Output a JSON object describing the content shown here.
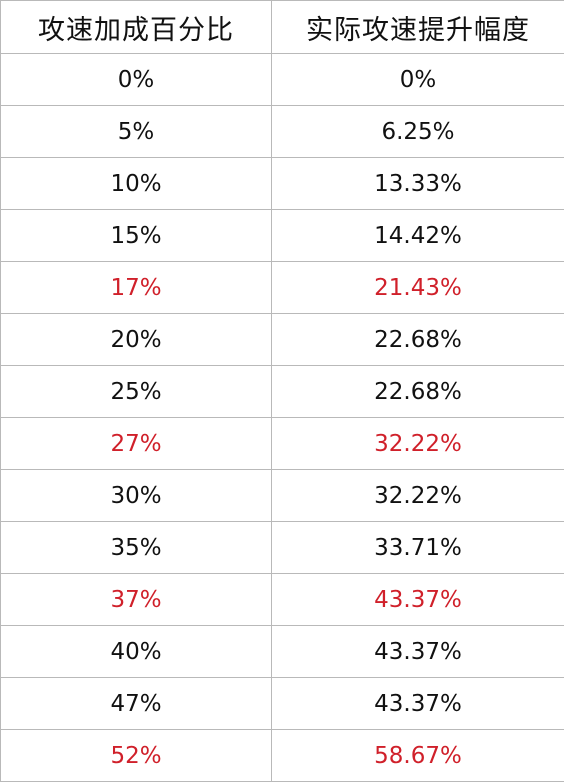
{
  "table": {
    "headers": [
      "攻速加成百分比",
      "实际攻速提升幅度"
    ],
    "highlight_color": "#d0202a",
    "rows": [
      {
        "bonus": "0%",
        "actual": "0%",
        "highlight": false
      },
      {
        "bonus": "5%",
        "actual": "6.25%",
        "highlight": false
      },
      {
        "bonus": "10%",
        "actual": "13.33%",
        "highlight": false
      },
      {
        "bonus": "15%",
        "actual": "14.42%",
        "highlight": false
      },
      {
        "bonus": "17%",
        "actual": "21.43%",
        "highlight": true
      },
      {
        "bonus": "20%",
        "actual": "22.68%",
        "highlight": false
      },
      {
        "bonus": "25%",
        "actual": "22.68%",
        "highlight": false
      },
      {
        "bonus": "27%",
        "actual": "32.22%",
        "highlight": true
      },
      {
        "bonus": "30%",
        "actual": "32.22%",
        "highlight": false
      },
      {
        "bonus": "35%",
        "actual": "33.71%",
        "highlight": false
      },
      {
        "bonus": "37%",
        "actual": "43.37%",
        "highlight": true
      },
      {
        "bonus": "40%",
        "actual": "43.37%",
        "highlight": false
      },
      {
        "bonus": "47%",
        "actual": "43.37%",
        "highlight": false
      },
      {
        "bonus": "52%",
        "actual": "58.67%",
        "highlight": true
      }
    ]
  }
}
